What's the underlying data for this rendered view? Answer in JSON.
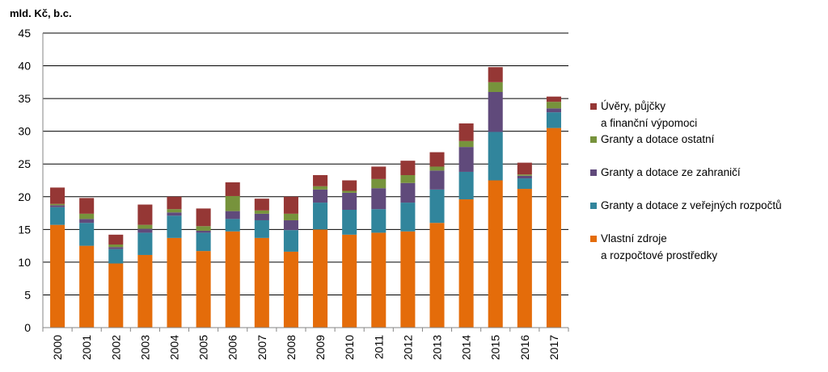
{
  "chart_data": {
    "type": "bar",
    "stacked": true,
    "title": "",
    "xlabel": "",
    "ylabel": "mld. Kč, b.c.",
    "ylim": [
      0,
      45
    ],
    "yticks": [
      0,
      5,
      10,
      15,
      20,
      25,
      30,
      35,
      40,
      45
    ],
    "grid": true,
    "legend_position": "right",
    "categories": [
      "2000",
      "2001",
      "2002",
      "2003",
      "2004",
      "2005",
      "2006",
      "2007",
      "2008",
      "2009",
      "2010",
      "2011",
      "2012",
      "2013",
      "2014",
      "2015",
      "2016",
      "2017"
    ],
    "series": [
      {
        "name": "Vlastní zdroje a rozpočtové prostředky",
        "legend_lines": [
          "Vlastní zdroje",
          "a rozpočtové prostředky"
        ],
        "color": "#E46C0A",
        "values": [
          15.7,
          12.5,
          9.8,
          11.1,
          13.7,
          11.7,
          14.7,
          13.7,
          11.6,
          15.0,
          14.2,
          14.5,
          14.7,
          16.0,
          19.6,
          22.5,
          21.2,
          30.5
        ]
      },
      {
        "name": "Granty a dotace z veřejných rozpočtů",
        "legend_lines": [
          "Granty a dotace z veřejných rozpočtů"
        ],
        "color": "#31859C",
        "values": [
          2.7,
          3.5,
          2.2,
          3.4,
          3.4,
          2.8,
          1.9,
          2.7,
          3.3,
          4.1,
          3.8,
          3.6,
          4.4,
          5.1,
          4.2,
          7.4,
          1.6,
          2.4
        ]
      },
      {
        "name": "Granty a dotace ze zahraničí",
        "legend_lines": [
          "Granty a dotace ze zahraničí"
        ],
        "color": "#604A7B",
        "values": [
          0.3,
          0.6,
          0.3,
          0.6,
          0.5,
          0.3,
          1.2,
          1.0,
          1.5,
          2.0,
          2.6,
          3.2,
          3.0,
          2.9,
          3.8,
          6.1,
          0.4,
          0.6
        ]
      },
      {
        "name": "Granty a dotace ostatní",
        "legend_lines": [
          "Granty a dotace ostatní"
        ],
        "color": "#77933C",
        "values": [
          0.2,
          0.8,
          0.4,
          0.6,
          0.5,
          0.7,
          2.3,
          0.5,
          1.0,
          0.5,
          0.3,
          1.4,
          1.2,
          0.6,
          0.9,
          1.5,
          0.2,
          1.0
        ]
      },
      {
        "name": "Úvěry, půjčky a finanční výpomoci",
        "legend_lines": [
          "Úvěry, půjčky",
          "a finanční výpomoci"
        ],
        "color": "#953735",
        "values": [
          2.5,
          2.4,
          1.5,
          3.1,
          1.9,
          2.7,
          2.1,
          1.8,
          2.6,
          1.7,
          1.6,
          1.9,
          2.2,
          2.2,
          2.7,
          2.3,
          1.8,
          0.8
        ]
      }
    ],
    "legend_order": [
      4,
      3,
      2,
      1,
      0
    ]
  }
}
